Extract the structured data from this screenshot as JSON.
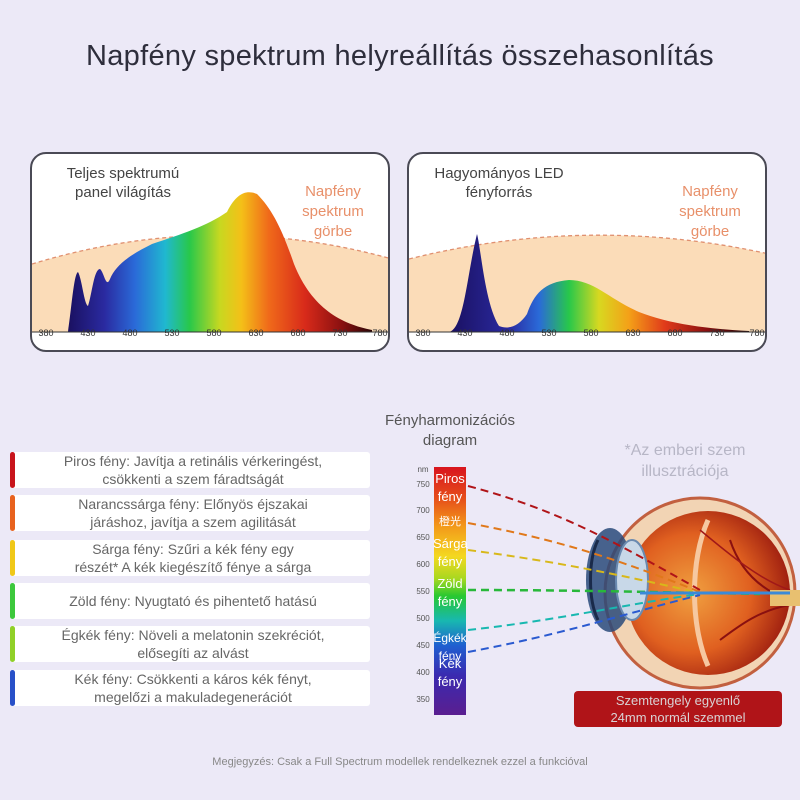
{
  "title": "Napfény spektrum helyreállítás összehasonlítás",
  "left_panel": {
    "label_line1": "Teljes spektrumú",
    "label_line2": "panel világítás",
    "sun_line1": "Napfény",
    "sun_line2": "spektrum",
    "sun_line3": "görbe",
    "ticks": [
      "380",
      "430",
      "480",
      "530",
      "580",
      "630",
      "680",
      "730",
      "780"
    ]
  },
  "right_panel": {
    "label_line1": "Hagyományos LED",
    "label_line2": "fényforrás",
    "sun_line1": "Napfény",
    "sun_line2": "spektrum",
    "sun_line3": "görbe",
    "ticks": [
      "380",
      "430",
      "480",
      "530",
      "580",
      "630",
      "680",
      "730",
      "780"
    ]
  },
  "diagram": {
    "title_line1": "Fényharmonizációs",
    "title_line2": "diagram",
    "eye_caption_line1": "*Az emberi szem",
    "eye_caption_line2": "illusztrációja",
    "bar_labels": [
      {
        "l1": "Piros",
        "l2": "fény"
      },
      {
        "l1": "橙光",
        "l2": ""
      },
      {
        "l1": "Sárga",
        "l2": "fény"
      },
      {
        "l1": "Zöld",
        "l2": "fény"
      },
      {
        "l1": "Égkék",
        "l2": "fény"
      },
      {
        "l1": "Kék",
        "l2": "fény"
      }
    ],
    "nm_scale": [
      "nm",
      "750",
      "700",
      "650",
      "600",
      "550",
      "500",
      "450",
      "400",
      "350"
    ],
    "eye_note_line1": "Szemtengely egyenlő",
    "eye_note_line2": "24mm normál szemmel"
  },
  "items": [
    {
      "l1": "Piros fény: Javítja a retinális vérkeringést,",
      "l2": "csökkenti a szem fáradtságát",
      "color": "#c8141c"
    },
    {
      "l1": "Narancssárga fény: Előnyös éjszakai",
      "l2": "járáshoz, javítja a szem agilitását",
      "color": "#e8621e"
    },
    {
      "l1": "Sárga fény: Szűri a kék fény egy",
      "l2": "részét* A kék kiegészítő fénye a sárga",
      "color": "#f0c818"
    },
    {
      "l1": "Zöld fény: Nyugtató és pihentető hatású",
      "l2": "",
      "color": "#3cc83c"
    },
    {
      "l1": "Égkék fény: Növeli a melatonin szekréciót,",
      "l2": "elősegíti az alvást",
      "color": "#90d028"
    },
    {
      "l1": "Kék fény: Csökkenti a káros kék fényt,",
      "l2": "megelőzi a makuladegenerációt",
      "color": "#2850c8"
    }
  ],
  "footnote": "Megjegyzés: Csak a Full Spectrum modellek rendelkeznek ezzel a funkcióval"
}
